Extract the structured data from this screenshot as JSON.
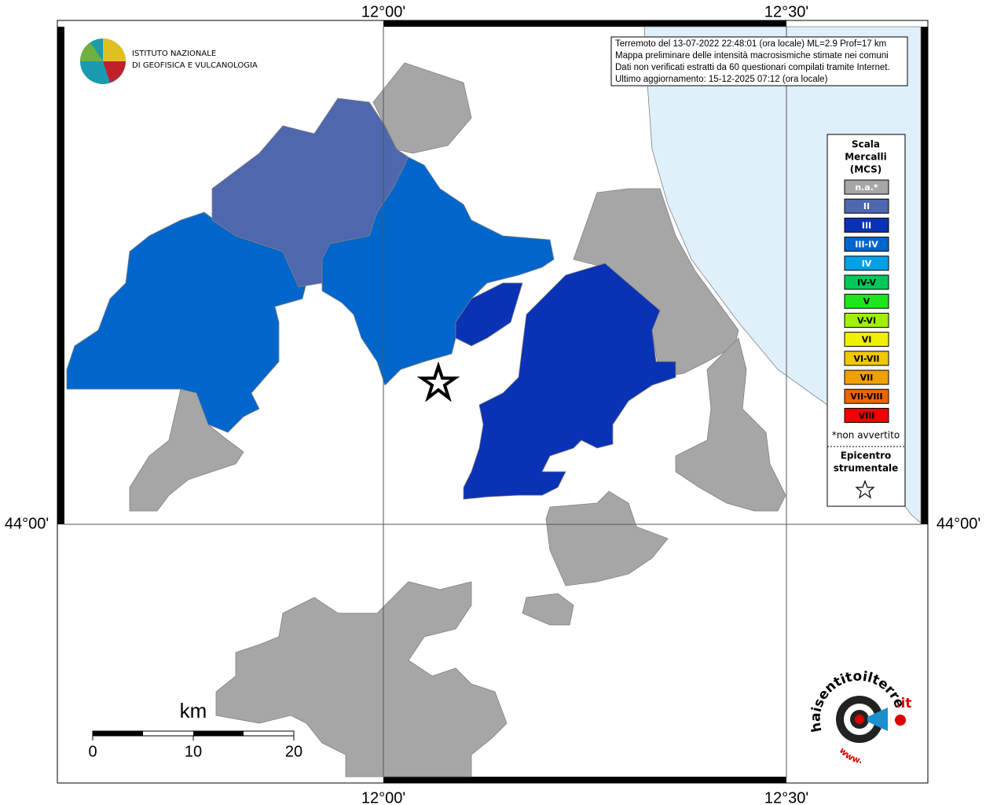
{
  "map": {
    "lon_labels": [
      "12°00'",
      "12°30'"
    ],
    "lat_labels": [
      "44°00'"
    ]
  },
  "header": {
    "institute": [
      "ISTITUTO NAZIONALE",
      "DI GEOFISICA E VULCANOLOGIA"
    ]
  },
  "info": {
    "lines": [
      "Terremoto del 13-07-2022 22:48:01 (ora locale) ML=2.9 Prof=17 km",
      "Mappa preliminare delle intensità macrosismiche stimate nei comuni",
      "Dati non verificati estratti da 60 questionari compilati tramite Internet.",
      "Ultimo aggiornamento: 15-12-2025 07:12 (ora locale)"
    ]
  },
  "legend": {
    "title": [
      "Scala",
      "Mercalli",
      "(MCS)"
    ],
    "items": [
      {
        "label": "n.a.*",
        "color": "#a6a6a6"
      },
      {
        "label": "II",
        "color": "#4f67ad"
      },
      {
        "label": "III",
        "color": "#0a32b4"
      },
      {
        "label": "III-IV",
        "color": "#0066cc"
      },
      {
        "label": "IV",
        "color": "#00a0e6"
      },
      {
        "label": "IV-V",
        "color": "#00c85a"
      },
      {
        "label": "V",
        "color": "#1ee61e"
      },
      {
        "label": "V-VI",
        "color": "#a0f000"
      },
      {
        "label": "VI",
        "color": "#f0f000"
      },
      {
        "label": "VI-VII",
        "color": "#f0c800"
      },
      {
        "label": "VII",
        "color": "#f0a000"
      },
      {
        "label": "VII-VIII",
        "color": "#f06400"
      },
      {
        "label": "VIII",
        "color": "#f00000"
      }
    ],
    "note": "*non avvertito",
    "epicenter": [
      "Epicentro",
      "strumentale"
    ]
  },
  "scale_bar": {
    "unit": "km",
    "ticks": [
      "0",
      "10",
      "20"
    ]
  },
  "logo": {
    "name": "haisentitoilterremoto",
    "domain": ".it",
    "prefix": "www."
  }
}
